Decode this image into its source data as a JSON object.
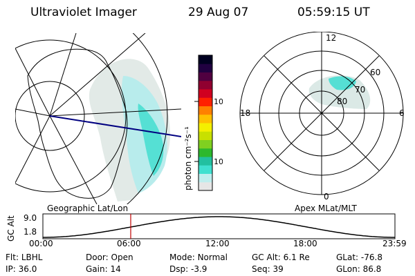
{
  "header": {
    "title": "Ultraviolet Imager",
    "date": "29 Aug 07",
    "time": "05:59:15 UT"
  },
  "left_panel": {
    "caption": "Geographic Lat/Lon"
  },
  "colorbar": {
    "unit_label": "photon cm⁻²s⁻¹",
    "ticks": [
      "100",
      "10"
    ],
    "colors": [
      "#e6e6e6",
      "#bfeeee",
      "#40e0d0",
      "#22c0a0",
      "#2db82d",
      "#80d020",
      "#c8e000",
      "#f4f000",
      "#ffc000",
      "#ff8000",
      "#ff2000",
      "#d00020",
      "#900030",
      "#500040",
      "#200040",
      "#000020"
    ]
  },
  "right_panel": {
    "caption": "Apex MLat/MLT",
    "mlt_labels": [
      "12",
      "18",
      "6",
      "0"
    ],
    "mlat_labels": [
      "60",
      "70",
      "80"
    ]
  },
  "timeline": {
    "ylabel": "GC Alt",
    "yticks": [
      "9.0",
      "1.8"
    ],
    "xticks": [
      "00:00",
      "06:00",
      "12:00",
      "18:00",
      "23:59"
    ],
    "marker_time": "05:59:15"
  },
  "info": {
    "row1": [
      {
        "label": "Flt:",
        "value": "LBHL"
      },
      {
        "label": "Door:",
        "value": "Open"
      },
      {
        "label": "Mode:",
        "value": "Normal"
      },
      {
        "label": "GC Alt:",
        "value": "6.1 Re"
      },
      {
        "label": "GLat:",
        "value": "-76.8"
      }
    ],
    "row2": [
      {
        "label": "IP:",
        "value": "36.0"
      },
      {
        "label": "Gain:",
        "value": "14"
      },
      {
        "label": "Dsp:",
        "value": "-3.9"
      },
      {
        "label": "Seq:",
        "value": "39"
      },
      {
        "label": "GLon:",
        "value": "86.8"
      }
    ]
  }
}
